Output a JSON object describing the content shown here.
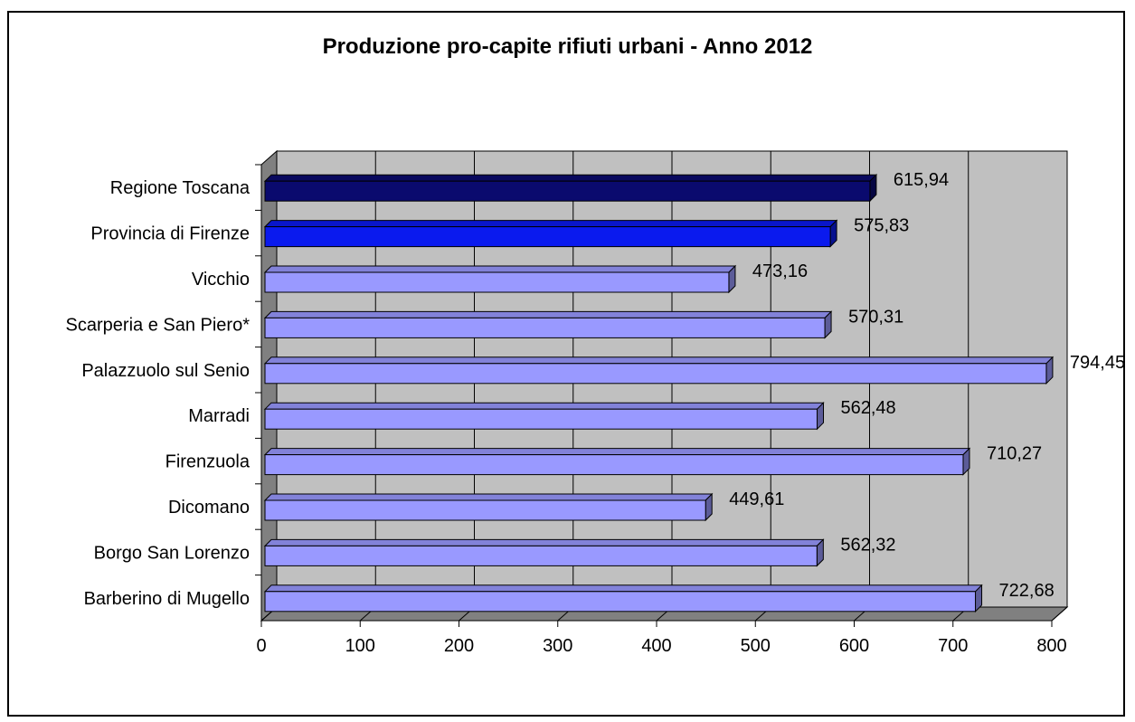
{
  "chart_data": {
    "type": "bar",
    "orientation": "horizontal",
    "title": "Produzione pro-capite rifiuti urbani - Anno 2012",
    "xlabel": "",
    "ylabel": "",
    "xlim": [
      0,
      800
    ],
    "x_ticks": [
      0,
      100,
      200,
      300,
      400,
      500,
      600,
      700,
      800
    ],
    "grid": true,
    "legend": "none",
    "categories": [
      "Regione Toscana",
      "Provincia di Firenze",
      "Vicchio",
      "Scarperia e San Piero*",
      "Palazzuolo sul Senio",
      "Marradi",
      "Firenzuola",
      "Dicomano",
      "Borgo San Lorenzo",
      "Barberino di Mugello"
    ],
    "values": [
      615.94,
      575.83,
      473.16,
      570.31,
      794.45,
      562.48,
      710.27,
      449.61,
      562.32,
      722.68
    ],
    "value_labels": [
      "615,94",
      "575,83",
      "473,16",
      "570,31",
      "794,45",
      "562,48",
      "710,27",
      "449,61",
      "562,32",
      "722,68"
    ],
    "bar_colors": [
      "#0a0a6e",
      "#0a1aee",
      "#9999ff",
      "#9999ff",
      "#9999ff",
      "#9999ff",
      "#9999ff",
      "#9999ff",
      "#9999ff",
      "#9999ff"
    ],
    "plot_background": "#c0c0c0",
    "wall_color": "#808080"
  }
}
